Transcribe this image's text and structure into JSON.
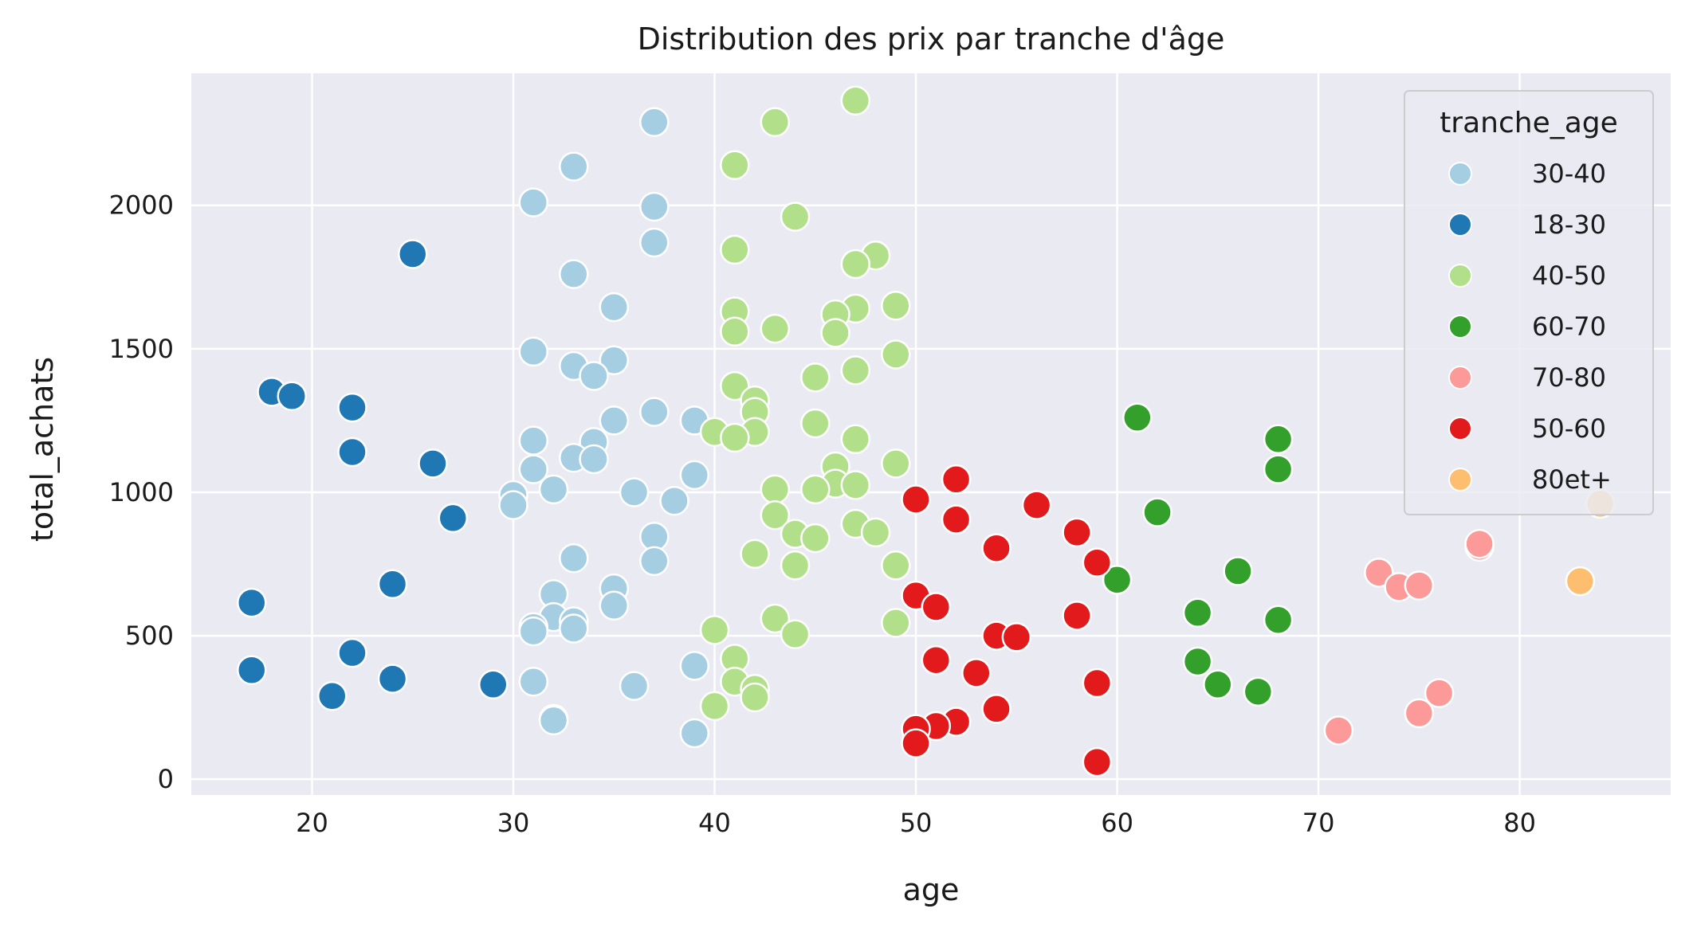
{
  "chart_data": {
    "type": "scatter",
    "title": "Distribution des prix par tranche d'âge",
    "xlabel": "age",
    "ylabel": "total_achats",
    "xlim": [
      14,
      87.5
    ],
    "ylim": [
      -55,
      2460
    ],
    "xticks": [
      20,
      30,
      40,
      50,
      60,
      70,
      80
    ],
    "yticks": [
      0,
      500,
      1000,
      1500,
      2000
    ],
    "grid": true,
    "legend": {
      "title": "tranche_age",
      "placement": "top-right"
    },
    "series": [
      {
        "name": "30-40",
        "color": "#a6cee3",
        "points": [
          [
            37,
            2290
          ],
          [
            33,
            2135
          ],
          [
            31,
            2010
          ],
          [
            37,
            1995
          ],
          [
            37,
            1870
          ],
          [
            33,
            1760
          ],
          [
            35,
            1645
          ],
          [
            31,
            1490
          ],
          [
            35,
            1460
          ],
          [
            33,
            1440
          ],
          [
            34,
            1405
          ],
          [
            37,
            1280
          ],
          [
            35,
            1250
          ],
          [
            39,
            1250
          ],
          [
            31,
            1180
          ],
          [
            34,
            1175
          ],
          [
            33,
            1120
          ],
          [
            34,
            1115
          ],
          [
            31,
            1080
          ],
          [
            39,
            1060
          ],
          [
            32,
            1010
          ],
          [
            36,
            1000
          ],
          [
            30,
            990
          ],
          [
            38,
            970
          ],
          [
            30,
            955
          ],
          [
            37,
            845
          ],
          [
            33,
            770
          ],
          [
            37,
            760
          ],
          [
            35,
            665
          ],
          [
            32,
            645
          ],
          [
            35,
            605
          ],
          [
            32,
            565
          ],
          [
            33,
            550
          ],
          [
            31,
            530
          ],
          [
            33,
            525
          ],
          [
            31,
            515
          ],
          [
            39,
            395
          ],
          [
            31,
            340
          ],
          [
            36,
            325
          ],
          [
            32,
            210
          ],
          [
            32,
            205
          ],
          [
            39,
            160
          ]
        ]
      },
      {
        "name": "18-30",
        "color": "#1f78b4",
        "points": [
          [
            25,
            1830
          ],
          [
            18,
            1350
          ],
          [
            19,
            1335
          ],
          [
            22,
            1295
          ],
          [
            22,
            1140
          ],
          [
            26,
            1100
          ],
          [
            27,
            910
          ],
          [
            24,
            680
          ],
          [
            17,
            615
          ],
          [
            22,
            440
          ],
          [
            17,
            380
          ],
          [
            24,
            350
          ],
          [
            29,
            330
          ],
          [
            21,
            290
          ]
        ]
      },
      {
        "name": "40-50",
        "color": "#b2df8a",
        "points": [
          [
            47,
            2365
          ],
          [
            43,
            2290
          ],
          [
            41,
            2140
          ],
          [
            44,
            1960
          ],
          [
            41,
            1845
          ],
          [
            48,
            1825
          ],
          [
            47,
            1795
          ],
          [
            49,
            1650
          ],
          [
            47,
            1640
          ],
          [
            41,
            1630
          ],
          [
            46,
            1620
          ],
          [
            43,
            1570
          ],
          [
            41,
            1560
          ],
          [
            46,
            1555
          ],
          [
            49,
            1480
          ],
          [
            47,
            1425
          ],
          [
            45,
            1400
          ],
          [
            41,
            1370
          ],
          [
            42,
            1320
          ],
          [
            42,
            1280
          ],
          [
            45,
            1240
          ],
          [
            40,
            1210
          ],
          [
            42,
            1210
          ],
          [
            41,
            1190
          ],
          [
            47,
            1185
          ],
          [
            49,
            1100
          ],
          [
            46,
            1090
          ],
          [
            46,
            1030
          ],
          [
            47,
            1025
          ],
          [
            43,
            1010
          ],
          [
            45,
            1010
          ],
          [
            43,
            920
          ],
          [
            47,
            890
          ],
          [
            48,
            860
          ],
          [
            44,
            855
          ],
          [
            45,
            840
          ],
          [
            42,
            785
          ],
          [
            49,
            745
          ],
          [
            44,
            745
          ],
          [
            43,
            560
          ],
          [
            49,
            545
          ],
          [
            40,
            520
          ],
          [
            44,
            505
          ],
          [
            41,
            420
          ],
          [
            41,
            340
          ],
          [
            42,
            315
          ],
          [
            42,
            285
          ],
          [
            40,
            255
          ]
        ]
      },
      {
        "name": "60-70",
        "color": "#33a02c",
        "points": [
          [
            61,
            1260
          ],
          [
            68,
            1185
          ],
          [
            68,
            1080
          ],
          [
            62,
            930
          ],
          [
            66,
            725
          ],
          [
            60,
            695
          ],
          [
            64,
            580
          ],
          [
            68,
            555
          ],
          [
            64,
            410
          ],
          [
            65,
            330
          ],
          [
            67,
            305
          ]
        ]
      },
      {
        "name": "70-80",
        "color": "#fb9a99",
        "points": [
          [
            78,
            810
          ],
          [
            78,
            820
          ],
          [
            73,
            720
          ],
          [
            74,
            670
          ],
          [
            75,
            675
          ],
          [
            76,
            300
          ],
          [
            75,
            230
          ],
          [
            71,
            170
          ]
        ]
      },
      {
        "name": "50-60",
        "color": "#e31a1c",
        "points": [
          [
            52,
            1045
          ],
          [
            50,
            975
          ],
          [
            56,
            955
          ],
          [
            52,
            905
          ],
          [
            58,
            860
          ],
          [
            54,
            805
          ],
          [
            59,
            755
          ],
          [
            50,
            640
          ],
          [
            51,
            600
          ],
          [
            58,
            570
          ],
          [
            54,
            500
          ],
          [
            55,
            495
          ],
          [
            51,
            415
          ],
          [
            53,
            370
          ],
          [
            59,
            335
          ],
          [
            54,
            245
          ],
          [
            52,
            200
          ],
          [
            51,
            185
          ],
          [
            50,
            175
          ],
          [
            50,
            125
          ],
          [
            59,
            60
          ]
        ]
      },
      {
        "name": "80et+",
        "color": "#fdbf6f",
        "points": [
          [
            84,
            960
          ],
          [
            83,
            690
          ]
        ]
      }
    ]
  }
}
